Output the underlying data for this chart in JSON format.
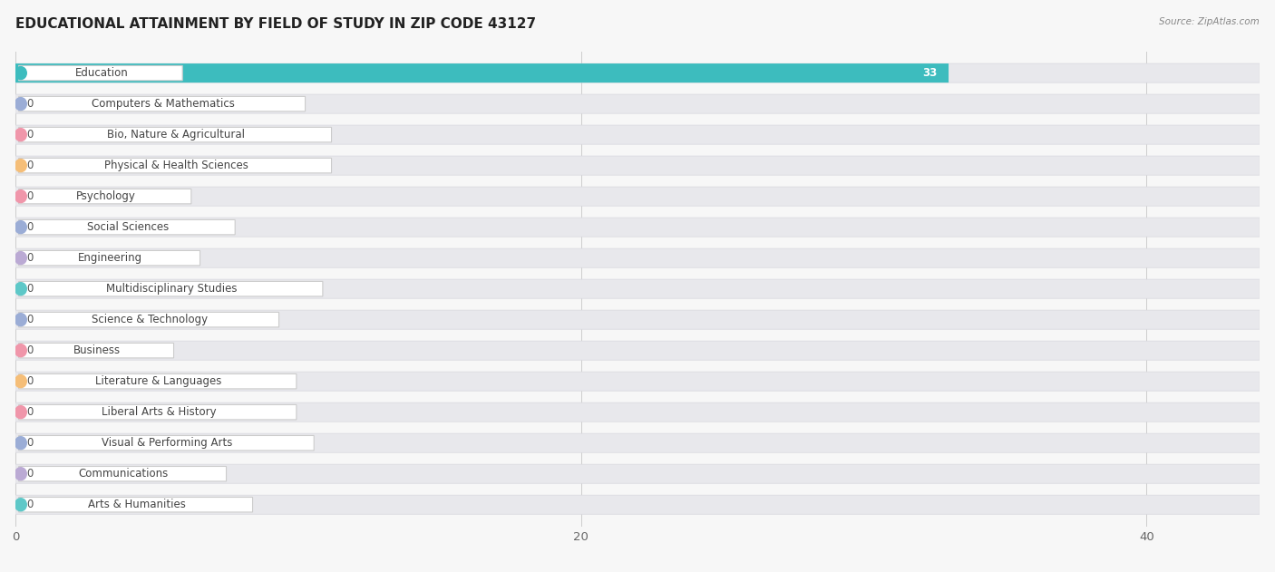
{
  "title": "EDUCATIONAL ATTAINMENT BY FIELD OF STUDY IN ZIP CODE 43127",
  "source": "Source: ZipAtlas.com",
  "categories": [
    "Education",
    "Computers & Mathematics",
    "Bio, Nature & Agricultural",
    "Physical & Health Sciences",
    "Psychology",
    "Social Sciences",
    "Engineering",
    "Multidisciplinary Studies",
    "Science & Technology",
    "Business",
    "Literature & Languages",
    "Liberal Arts & History",
    "Visual & Performing Arts",
    "Communications",
    "Arts & Humanities"
  ],
  "values": [
    33,
    0,
    0,
    0,
    0,
    0,
    0,
    0,
    0,
    0,
    0,
    0,
    0,
    0,
    0
  ],
  "bar_colors": [
    "#3dbcbe",
    "#9badd6",
    "#f096aa",
    "#f5be78",
    "#f096aa",
    "#9badd6",
    "#bbaad4",
    "#5ec8c8",
    "#9badd6",
    "#f096aa",
    "#f5be78",
    "#f096aa",
    "#9badd6",
    "#bbaad4",
    "#5ec8c8"
  ],
  "xlim": [
    0,
    44
  ],
  "xticks": [
    0,
    20,
    40
  ],
  "background_color": "#f7f7f7",
  "row_bg_color": "#ebebeb",
  "title_fontsize": 11,
  "label_fontsize": 8.5,
  "value_fontsize": 8.5
}
